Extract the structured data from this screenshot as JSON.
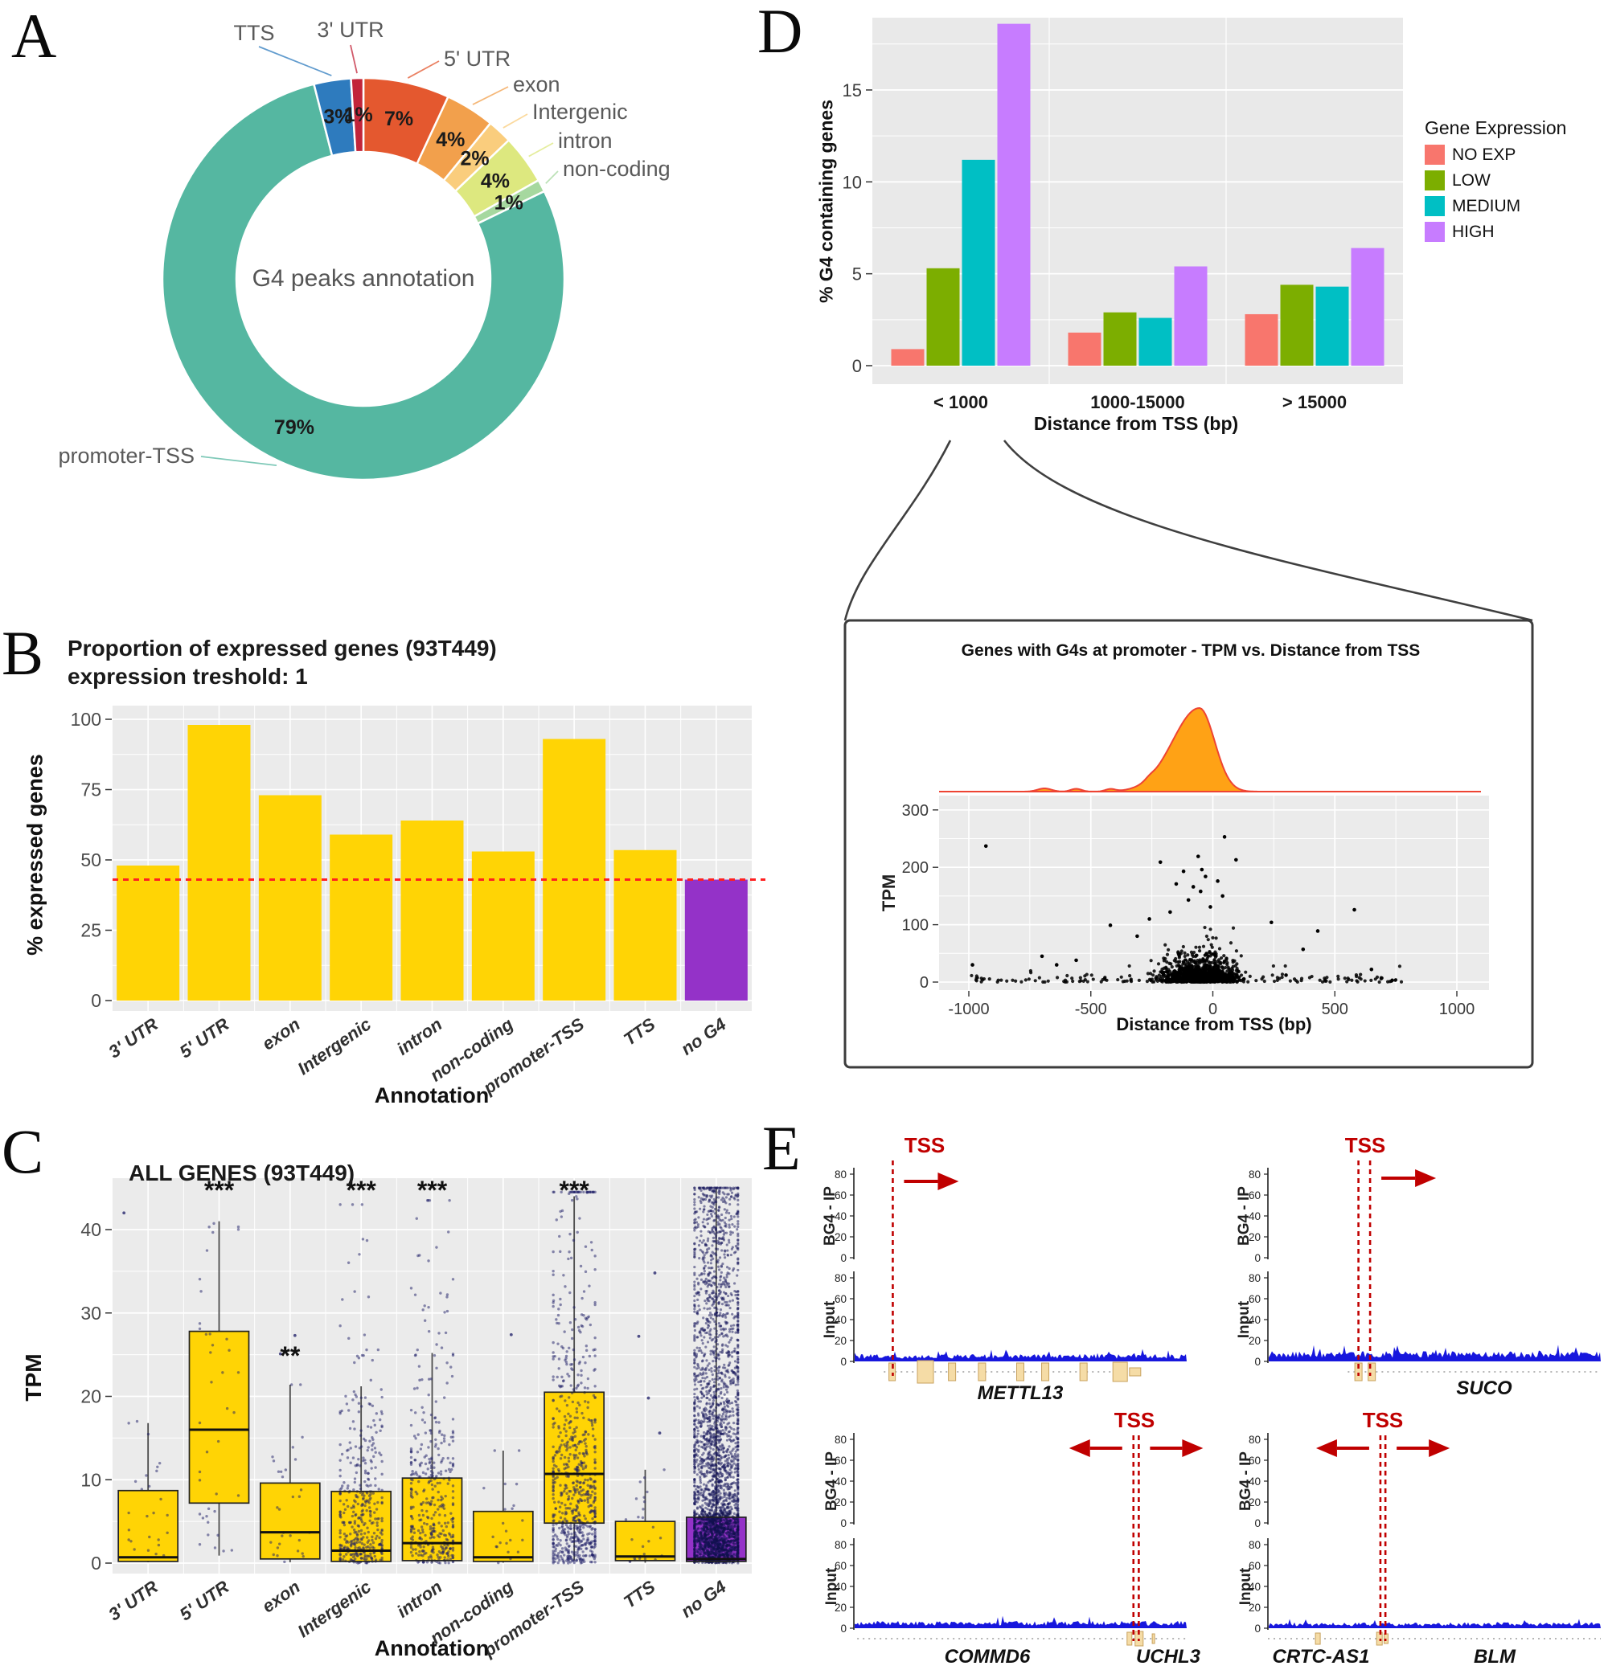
{
  "panel_labels": {
    "a": "A",
    "b": "B",
    "c": "C",
    "d": "D",
    "e": "E"
  },
  "chart_data": [
    {
      "id": "donut_a",
      "type": "pie",
      "title": "G4 peaks annotation",
      "note": "segments listed clockwise starting at 12 o'clock",
      "segments": [
        {
          "label": "5' UTR",
          "pct": 7,
          "color": "#E4582F"
        },
        {
          "label": "exon",
          "pct": 4,
          "color": "#F2A04C"
        },
        {
          "label": "Intergenic",
          "pct": 2,
          "color": "#FACD7D"
        },
        {
          "label": "intron",
          "pct": 4,
          "color": "#DDE87F"
        },
        {
          "label": "non-coding",
          "pct": 1,
          "color": "#A6D89F"
        },
        {
          "label": "promoter-TSS",
          "pct": 79,
          "color": "#55B7A1"
        },
        {
          "label": "TTS",
          "pct": 3,
          "color": "#2E7BBE"
        },
        {
          "label": "3' UTR",
          "pct": 1,
          "color": "#C2253A"
        }
      ]
    },
    {
      "id": "bar_b",
      "type": "bar",
      "title": "Proportion of expressed genes (93T449)",
      "subtitle": "expression treshold: 1",
      "xlabel": "Annotation",
      "ylabel": "% expressed genes",
      "ylim": [
        0,
        103
      ],
      "yticks": [
        0,
        25,
        50,
        75,
        100
      ],
      "categories": [
        "3' UTR",
        "5' UTR",
        "exon",
        "Intergenic",
        "intron",
        "non-coding",
        "promoter-TSS",
        "TTS",
        "no G4"
      ],
      "values": [
        48,
        98,
        73,
        59,
        64,
        53,
        93,
        53.5,
        43
      ],
      "bar_color": "#FFD405",
      "no_g4_color": "#9432C8",
      "ref_line": {
        "value": 43,
        "color": "#FF2020",
        "style": "dashed"
      }
    },
    {
      "id": "box_c",
      "type": "boxplot",
      "title": "ALL GENES (93T449)",
      "xlabel": "Annotation",
      "ylabel": "TPM",
      "ylim": [
        0,
        46
      ],
      "yticks": [
        0,
        10,
        20,
        30,
        40
      ],
      "categories": [
        "3' UTR",
        "5' UTR",
        "exon",
        "Intergenic",
        "intron",
        "non-coding",
        "promoter-TSS",
        "TTS",
        "no G4"
      ],
      "boxes": [
        {
          "category": "3' UTR",
          "whisker_low": 0.1,
          "q1": 0.2,
          "median": 0.7,
          "q3": 8.7,
          "whisker_high": 16.8
        },
        {
          "category": "5' UTR",
          "whisker_low": 0.9,
          "q1": 7.2,
          "median": 16,
          "q3": 27.8,
          "whisker_high": 41
        },
        {
          "category": "exon",
          "whisker_low": 0.1,
          "q1": 0.5,
          "median": 3.7,
          "q3": 9.6,
          "whisker_high": 21.4
        },
        {
          "category": "Intergenic",
          "whisker_low": 0.05,
          "q1": 0.2,
          "median": 1.5,
          "q3": 8.6,
          "whisker_high": 21.2
        },
        {
          "category": "intron",
          "whisker_low": 0.05,
          "q1": 0.3,
          "median": 2.4,
          "q3": 10.2,
          "whisker_high": 25.2
        },
        {
          "category": "non-coding",
          "whisker_low": 0.05,
          "q1": 0.2,
          "median": 0.7,
          "q3": 6.2,
          "whisker_high": 13.5
        },
        {
          "category": "promoter-TSS",
          "whisker_low": 0.3,
          "q1": 4.8,
          "median": 10.7,
          "q3": 20.5,
          "whisker_high": 44
        },
        {
          "category": "TTS",
          "whisker_low": 0.05,
          "q1": 0.3,
          "median": 0.8,
          "q3": 5.0,
          "whisker_high": 11.2
        },
        {
          "category": "no G4",
          "whisker_low": 0.05,
          "q1": 0.2,
          "median": 0.5,
          "q3": 5.5,
          "whisker_high": 45
        }
      ],
      "significance": [
        "",
        "***",
        "**",
        "***",
        "***",
        "",
        "***",
        "",
        ""
      ],
      "box_color": "#FFD405",
      "no_g4_color": "#9432C8",
      "point_color": "#1b1b66"
    },
    {
      "id": "bar_d",
      "type": "bar",
      "xlabel": "Distance from TSS (bp)",
      "ylabel": "% G4 containing genes",
      "ylim": [
        0,
        19
      ],
      "yticks": [
        0,
        5,
        10,
        15
      ],
      "categories": [
        "< 1000",
        "1000-15000",
        "> 15000"
      ],
      "legend_title": "Gene Expression",
      "legend_position": "right",
      "series": [
        {
          "name": "NO EXP",
          "color": "#F8766D",
          "values": [
            0.9,
            1.8,
            2.8
          ]
        },
        {
          "name": "LOW",
          "color": "#7CAE00",
          "values": [
            5.3,
            2.9,
            4.4
          ]
        },
        {
          "name": "MEDIUM",
          "color": "#00BFC4",
          "values": [
            11.2,
            2.6,
            4.3
          ]
        },
        {
          "name": "HIGH",
          "color": "#C77CFF",
          "values": [
            18.6,
            5.4,
            6.4
          ]
        }
      ]
    },
    {
      "id": "scatter_d",
      "type": "scatter",
      "title": "Genes with G4s at promoter - TPM vs. Distance from TSS",
      "xlabel": "Distance from TSS (bp)",
      "ylabel": "TPM",
      "xlim": [
        -1120,
        1120
      ],
      "ylim": [
        -8,
        320
      ],
      "xticks": [
        -1000,
        -500,
        0,
        500,
        1000
      ],
      "yticks": [
        0,
        100,
        200,
        300
      ],
      "density": {
        "peak_center_bp": -55,
        "sd_left_bp": 110,
        "sd_right_bp": 62,
        "fill": "#FFA215",
        "line": "#EE4433"
      },
      "cluster": {
        "n_points": 1200,
        "center_bp": -55,
        "sd_bp": 115,
        "tpm_tail_scale": 13.5
      },
      "notable_points": [
        [
          -930,
          237
        ],
        [
          48,
          253
        ],
        [
          -215,
          209
        ],
        [
          95,
          213
        ],
        [
          -60,
          219
        ],
        [
          -45,
          196
        ],
        [
          -120,
          193
        ],
        [
          -30,
          184
        ],
        [
          20,
          176
        ],
        [
          -80,
          166
        ],
        [
          -150,
          171
        ],
        [
          -50,
          158
        ],
        [
          40,
          150
        ],
        [
          -100,
          143
        ],
        [
          -10,
          131
        ],
        [
          -175,
          122
        ],
        [
          580,
          126
        ],
        [
          240,
          104
        ],
        [
          430,
          89
        ],
        [
          -420,
          99
        ],
        [
          -310,
          80
        ],
        [
          -260,
          110
        ],
        [
          650,
          22
        ],
        [
          735,
          3
        ],
        [
          370,
          57
        ],
        [
          300,
          12
        ],
        [
          -700,
          45
        ],
        [
          -560,
          38
        ],
        [
          -640,
          30
        ],
        [
          -985,
          30
        ]
      ]
    },
    {
      "id": "tracks_e",
      "type": "area",
      "ylabel_ip": "BG4 - IP",
      "ylabel_input": "Input",
      "yticks": [
        0,
        20,
        40,
        60,
        80
      ],
      "tss_label": "TSS",
      "signal_color": "#1717DD",
      "tss_color": "#C00000",
      "gene_color": "#F5DCA6",
      "groups": [
        {
          "id": "mettl13",
          "genes": [
            "METTL13"
          ],
          "tss": "single",
          "arrows": "right",
          "ip_peak": {
            "frac": 0.117,
            "height": 35
          },
          "ip_baseline": 5,
          "input_baseline": 5,
          "bumps": [
            {
              "frac": 0.36,
              "h": 8
            },
            {
              "frac": 0.56,
              "h": 10
            },
            {
              "frac": 0.73,
              "h": 7
            }
          ]
        },
        {
          "id": "suco",
          "genes": [
            "SUCO"
          ],
          "tss": "double",
          "arrows": "right",
          "ip_peak": {
            "frac": 0.3,
            "height": 45
          },
          "ip_baseline": 7,
          "input_baseline": 7,
          "bumps": [
            {
              "frac": 0.285,
              "h": 16
            },
            {
              "frac": 0.12,
              "h": 4
            },
            {
              "frac": 0.75,
              "h": 4
            }
          ]
        },
        {
          "id": "commd6-uchl3",
          "genes": [
            "COMMD6",
            "UCHL3"
          ],
          "tss": "double",
          "arrows": "both",
          "ip_peak": {
            "frac": 0.848,
            "height": 30
          },
          "ip_baseline": 4.5,
          "input_baseline": 5,
          "bumps": [
            {
              "frac": 0.1,
              "h": 11
            }
          ]
        },
        {
          "id": "crtcas1-blm",
          "genes": [
            "CRTC-AS1",
            "BLM"
          ],
          "tss": "double",
          "arrows": "both",
          "ip_peak": {
            "frac": 0.346,
            "height": 24
          },
          "ip_baseline": 4,
          "input_baseline": 4,
          "bumps": [
            {
              "frac": 0.12,
              "h": 6
            },
            {
              "frac": 0.62,
              "h": 4
            }
          ]
        }
      ]
    }
  ]
}
